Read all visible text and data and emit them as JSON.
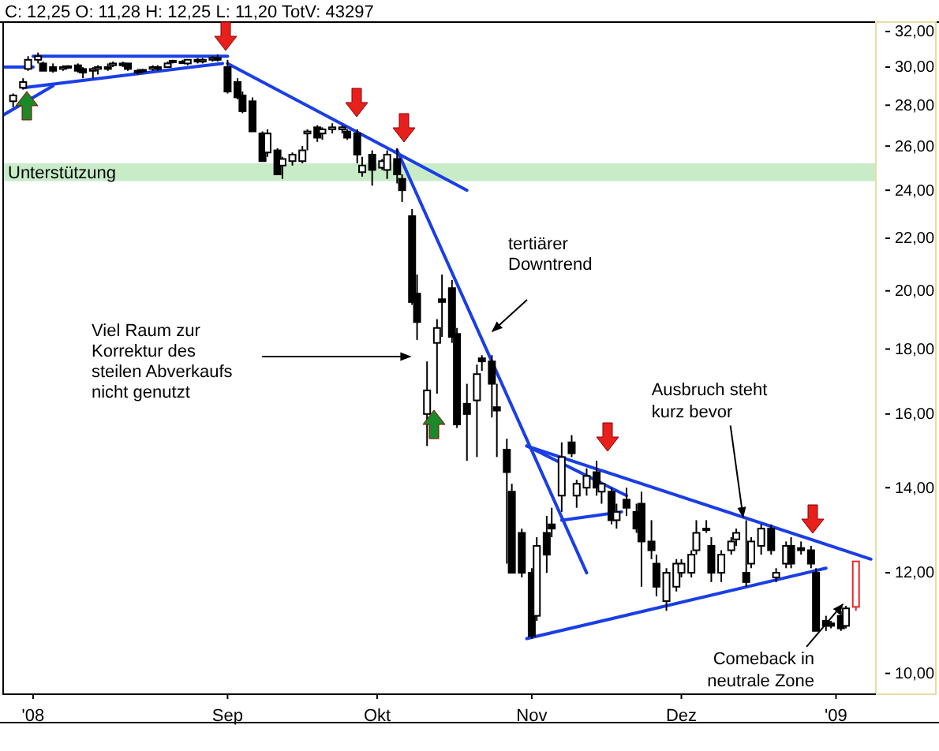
{
  "chart_data": {
    "type": "candlestick",
    "title": "C: 12,25 O: 11,28 H: 12,25 L: 11,20 TotV: 43297",
    "log": true,
    "xlim": [
      "2008-07-18",
      "2009-01-09"
    ],
    "xticks": [
      {
        "value": "2008-07-24",
        "label": "'08"
      },
      {
        "value": "2008-09-01",
        "label": "Sep"
      },
      {
        "value": "2008-10-01",
        "label": "Okt"
      },
      {
        "value": "2008-11-01",
        "label": "Nov"
      },
      {
        "value": "2008-12-01",
        "label": "Dez"
      },
      {
        "value": "2009-01-01",
        "label": "'09"
      }
    ],
    "ylim": [
      9.63,
      32.55
    ],
    "yticks": [
      {
        "value": 10,
        "label": "10,00"
      },
      {
        "value": 12,
        "label": "12,00"
      },
      {
        "value": 14,
        "label": "14,00"
      },
      {
        "value": 16,
        "label": "16,00"
      },
      {
        "value": 18,
        "label": "18,00"
      },
      {
        "value": 20,
        "label": "20,00"
      },
      {
        "value": 22,
        "label": "22,00"
      },
      {
        "value": 24,
        "label": "24,00"
      },
      {
        "value": 26,
        "label": "26,00"
      },
      {
        "value": 28,
        "label": "28,00"
      },
      {
        "value": 30,
        "label": "30,00"
      },
      {
        "value": 32,
        "label": "32,00"
      }
    ],
    "bands": [
      {
        "axis": "y",
        "from": 24.4,
        "to": 25.2,
        "label": "Unterstützung",
        "color": "#c8ebc8"
      }
    ],
    "series": [
      {
        "color": "#000000",
        "x": [
          "2008-07-20",
          "2008-07-22",
          "2008-07-23",
          "2008-07-25",
          "2008-07-26",
          "2008-07-28",
          "2008-07-30",
          "2008-07-31",
          "2008-08-02",
          "2008-08-03",
          "2008-08-05",
          "2008-08-06",
          "2008-08-08",
          "2008-08-09",
          "2008-08-11",
          "2008-08-12",
          "2008-08-14",
          "2008-08-15",
          "2008-08-17",
          "2008-08-18",
          "2008-08-20",
          "2008-08-21",
          "2008-08-23",
          "2008-08-24",
          "2008-08-26",
          "2008-08-27",
          "2008-08-29",
          "2008-08-30",
          "2008-09-01",
          "2008-09-03",
          "2008-09-04",
          "2008-09-06",
          "2008-09-08",
          "2008-09-09",
          "2008-09-11",
          "2008-09-12",
          "2008-09-14",
          "2008-09-16",
          "2008-09-17",
          "2008-09-19",
          "2008-09-20",
          "2008-09-22",
          "2008-09-24",
          "2008-09-25",
          "2008-09-27",
          "2008-09-28",
          "2008-09-30",
          "2008-10-02",
          "2008-10-03",
          "2008-10-05",
          "2008-10-06",
          "2008-10-08",
          "2008-10-09",
          "2008-10-11",
          "2008-10-13",
          "2008-10-14",
          "2008-10-16",
          "2008-10-17",
          "2008-10-19",
          "2008-10-21",
          "2008-10-22",
          "2008-10-24",
          "2008-10-25",
          "2008-10-27",
          "2008-10-28",
          "2008-10-30",
          "2008-11-01",
          "2008-11-02",
          "2008-11-04",
          "2008-11-05",
          "2008-11-07",
          "2008-11-09",
          "2008-11-10",
          "2008-11-12",
          "2008-11-14",
          "2008-11-15",
          "2008-11-17",
          "2008-11-18",
          "2008-11-20",
          "2008-11-22",
          "2008-11-23",
          "2008-11-25",
          "2008-11-26",
          "2008-11-28",
          "2008-11-30",
          "2008-12-01",
          "2008-12-03",
          "2008-12-04",
          "2008-12-06",
          "2008-12-07",
          "2008-12-09",
          "2008-12-11",
          "2008-12-12",
          "2008-12-14",
          "2008-12-15",
          "2008-12-17",
          "2008-12-19",
          "2008-12-20",
          "2008-12-22",
          "2008-12-23",
          "2008-12-25",
          "2008-12-27",
          "2008-12-28",
          "2008-12-30",
          "2008-12-31",
          "2009-01-02",
          "2009-01-03"
        ],
        "ohlc": [
          [
            28.2,
            28.6,
            27.9,
            28.5
          ],
          [
            28.9,
            29.4,
            28.8,
            29.2
          ],
          [
            29.9,
            30.6,
            29.8,
            30.4
          ],
          [
            30.4,
            30.8,
            30.2,
            30.6
          ],
          [
            30.2,
            30.3,
            29.8,
            29.8
          ],
          [
            30.0,
            30.2,
            29.7,
            29.8
          ],
          [
            29.9,
            30.1,
            29.8,
            30.0
          ],
          [
            30.0,
            30.1,
            29.9,
            30.05
          ],
          [
            30.1,
            30.2,
            29.7,
            29.8
          ],
          [
            29.9,
            30.0,
            29.4,
            29.7
          ],
          [
            29.8,
            30.0,
            29.4,
            29.9
          ],
          [
            29.9,
            30.1,
            29.6,
            30.0
          ],
          [
            30.0,
            30.2,
            29.8,
            29.9
          ],
          [
            30.1,
            30.3,
            30.0,
            30.2
          ],
          [
            30.2,
            30.3,
            30.0,
            30.1
          ],
          [
            30.2,
            30.2,
            29.8,
            29.9
          ],
          [
            29.8,
            29.9,
            29.6,
            29.7
          ],
          [
            29.8,
            29.9,
            29.7,
            29.85
          ],
          [
            29.9,
            30.1,
            29.8,
            30.0
          ],
          [
            30.0,
            30.1,
            29.8,
            29.9
          ],
          [
            30.0,
            30.3,
            30.0,
            30.2
          ],
          [
            30.3,
            30.4,
            30.2,
            30.35
          ],
          [
            30.3,
            30.4,
            30.2,
            30.3
          ],
          [
            30.2,
            30.4,
            30.1,
            30.4
          ],
          [
            30.4,
            30.5,
            30.2,
            30.3
          ],
          [
            30.3,
            30.5,
            30.2,
            30.4
          ],
          [
            30.4,
            30.6,
            30.3,
            30.5
          ],
          [
            30.5,
            30.7,
            30.3,
            30.4
          ],
          [
            30.0,
            30.4,
            28.6,
            28.7
          ],
          [
            29.2,
            29.4,
            28.3,
            28.4
          ],
          [
            28.5,
            28.7,
            27.6,
            27.7
          ],
          [
            28.2,
            28.4,
            26.7,
            26.7
          ],
          [
            26.6,
            26.7,
            25.3,
            25.3
          ],
          [
            25.7,
            26.8,
            25.5,
            26.6
          ],
          [
            25.8,
            25.9,
            24.7,
            24.7
          ],
          [
            25.1,
            25.5,
            24.5,
            25.4
          ],
          [
            25.3,
            25.7,
            25.1,
            25.6
          ],
          [
            25.3,
            26.0,
            25.2,
            25.8
          ],
          [
            26.6,
            26.8,
            25.8,
            26.7
          ],
          [
            26.9,
            27.0,
            26.2,
            26.4
          ],
          [
            26.6,
            26.9,
            26.3,
            26.8
          ],
          [
            26.8,
            27.1,
            26.6,
            26.9
          ],
          [
            26.8,
            27.0,
            26.6,
            26.9
          ],
          [
            26.7,
            26.8,
            26.3,
            26.4
          ],
          [
            26.6,
            26.8,
            25.2,
            25.6
          ],
          [
            24.8,
            25.5,
            24.6,
            25.1
          ],
          [
            25.6,
            25.8,
            24.2,
            24.9
          ],
          [
            25.0,
            25.4,
            24.9,
            25.3
          ],
          [
            24.9,
            25.8,
            24.5,
            25.6
          ],
          [
            25.4,
            25.9,
            24.3,
            24.7
          ],
          [
            24.5,
            24.7,
            23.5,
            24.0
          ],
          [
            22.9,
            23.2,
            19.5,
            19.6
          ],
          [
            19.9,
            20.6,
            18.3,
            18.9
          ],
          [
            16.0,
            17.6,
            15.1,
            16.7
          ],
          [
            18.2,
            19.0,
            16.6,
            18.7
          ],
          [
            19.7,
            20.6,
            18.4,
            19.6
          ],
          [
            20.1,
            20.4,
            18.2,
            18.4
          ],
          [
            18.5,
            18.7,
            15.6,
            15.7
          ],
          [
            16.3,
            16.9,
            14.7,
            16.0
          ],
          [
            16.4,
            17.5,
            14.8,
            17.2
          ],
          [
            17.7,
            17.8,
            17.3,
            17.6
          ],
          [
            17.6,
            17.8,
            15.9,
            16.9
          ],
          [
            16.2,
            16.9,
            14.8,
            16.1
          ],
          [
            15.0,
            15.3,
            12.2,
            14.4
          ],
          [
            13.9,
            14.1,
            12.0,
            12.0
          ],
          [
            12.9,
            13.0,
            11.9,
            12.0
          ],
          [
            12.0,
            12.1,
            10.65,
            10.7
          ],
          [
            11.1,
            12.8,
            11.0,
            12.6
          ],
          [
            12.9,
            13.3,
            12.0,
            12.4
          ],
          [
            13.1,
            13.5,
            12.8,
            13.0
          ],
          [
            13.8,
            15.2,
            13.4,
            14.8
          ],
          [
            15.2,
            15.4,
            14.8,
            14.9
          ],
          [
            13.8,
            14.2,
            13.5,
            14.1
          ],
          [
            14.0,
            14.5,
            13.8,
            14.3
          ],
          [
            14.4,
            14.7,
            13.8,
            14.0
          ],
          [
            13.9,
            14.1,
            13.6,
            14.1
          ],
          [
            13.9,
            14.0,
            13.1,
            13.2
          ],
          [
            13.2,
            13.6,
            13.0,
            13.4
          ],
          [
            13.7,
            14.0,
            13.3,
            13.5
          ],
          [
            13.4,
            13.6,
            12.9,
            13.0
          ],
          [
            13.6,
            13.9,
            11.7,
            12.7
          ],
          [
            12.7,
            13.2,
            12.3,
            12.5
          ],
          [
            12.2,
            12.4,
            11.5,
            11.7
          ],
          [
            11.4,
            12.1,
            11.2,
            12.0
          ],
          [
            11.7,
            12.3,
            11.6,
            12.2
          ],
          [
            12.0,
            12.3,
            11.9,
            12.2
          ],
          [
            12.0,
            12.5,
            11.9,
            12.4
          ],
          [
            12.5,
            13.2,
            12.4,
            12.9
          ],
          [
            13.0,
            13.2,
            12.9,
            13.0
          ],
          [
            12.6,
            12.8,
            11.8,
            12.0
          ],
          [
            12.0,
            12.5,
            11.8,
            12.4
          ],
          [
            12.5,
            12.8,
            12.4,
            12.7
          ],
          [
            12.75,
            13.0,
            12.6,
            12.9
          ],
          [
            12.0,
            13.2,
            11.7,
            11.8
          ],
          [
            12.2,
            12.8,
            12.1,
            12.7
          ],
          [
            12.6,
            13.1,
            12.4,
            13.0
          ],
          [
            13.0,
            13.1,
            12.4,
            12.5
          ],
          [
            11.9,
            12.1,
            11.8,
            12.0
          ],
          [
            12.2,
            12.7,
            12.1,
            12.6
          ],
          [
            12.6,
            12.8,
            12.1,
            12.2
          ],
          [
            12.55,
            12.7,
            12.4,
            12.5
          ],
          [
            12.5,
            12.6,
            12.1,
            12.2
          ],
          [
            12.0,
            12.1,
            10.8,
            10.8
          ],
          [
            11.0,
            11.1,
            10.8,
            10.9
          ],
          [
            10.95,
            11.0,
            10.85,
            10.9
          ],
          [
            11.1,
            11.2,
            10.8,
            10.85
          ],
          [
            10.9,
            11.3,
            10.85,
            11.25
          ]
        ]
      },
      {
        "color": "#e8282c",
        "x": [
          "2009-01-05"
        ],
        "ohlc": [
          [
            11.28,
            12.25,
            11.2,
            12.25
          ]
        ]
      },
      {
        "type": "line",
        "color": "#1a3ee6",
        "x": [
          "2008-07-24",
          "2008-09-01"
        ],
        "values": [
          30.6,
          30.6
        ]
      },
      {
        "type": "line",
        "color": "#1a3ee6",
        "x": [
          "2008-07-18",
          "2008-07-24"
        ],
        "values": [
          30.0,
          30.0
        ]
      },
      {
        "type": "line",
        "color": "#1a3ee6",
        "x": [
          "2008-07-22",
          "2008-08-31"
        ],
        "values": [
          28.9,
          30.2
        ]
      },
      {
        "type": "line",
        "color": "#1a3ee6",
        "x": [
          "2008-07-18",
          "2008-07-28"
        ],
        "values": [
          27.5,
          29.0
        ]
      },
      {
        "type": "line",
        "color": "#1a3ee6",
        "x": [
          "2008-09-01",
          "2008-10-19"
        ],
        "values": [
          30.2,
          24.0
        ]
      },
      {
        "type": "line",
        "color": "#1a3ee6",
        "x": [
          "2008-10-05",
          "2008-11-12"
        ],
        "values": [
          25.8,
          12.0
        ]
      },
      {
        "type": "line",
        "color": "#1a3ee6",
        "x": [
          "2008-10-31",
          "2009-01-08"
        ],
        "values": [
          15.1,
          12.3
        ]
      },
      {
        "type": "line",
        "color": "#1a3ee6",
        "x": [
          "2008-10-31",
          "2008-12-30"
        ],
        "values": [
          10.65,
          12.1
        ]
      },
      {
        "type": "line",
        "color": "#1a3ee6",
        "x": [
          "2008-10-31",
          "2008-11-20"
        ],
        "values": [
          15.1,
          13.8
        ]
      },
      {
        "type": "line",
        "color": "#1a3ee6",
        "x": [
          "2008-11-07",
          "2008-11-19"
        ],
        "values": [
          13.2,
          13.4
        ]
      }
    ],
    "annotations": [
      "Viel Raum zur\nKorrektur des\nsteilen Abverkaufs\nnicht genutzt",
      "tertiärer\nDowntrend",
      {
        "text": "Ausbruch steht\nkurz bevor",
        "x": "2008-12-14",
        "y": 13.2
      },
      {
        "text": "Comeback in\nneutrale Zone",
        "x": "2009-01-03",
        "y": 11.4
      }
    ]
  }
}
